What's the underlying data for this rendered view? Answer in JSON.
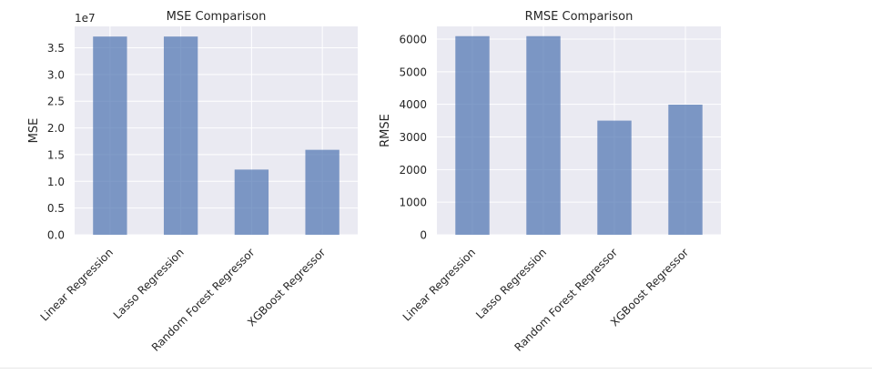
{
  "chart_data": [
    {
      "type": "bar",
      "title": "MSE Comparison",
      "xlabel": "",
      "ylabel": "MSE",
      "offset_text": "1e7",
      "scale": 10000000,
      "categories": [
        "Linear Regression",
        "Lasso Regression",
        "Random Forest Regressor",
        "XGBoost Regressor"
      ],
      "values": [
        37100000,
        37100000,
        12200000,
        15900000
      ],
      "ylim": [
        0,
        39000000
      ],
      "yticks": [
        0,
        5000000,
        10000000,
        15000000,
        20000000,
        25000000,
        30000000,
        35000000
      ],
      "ytick_labels": [
        "0.0",
        "0.5",
        "1.0",
        "1.5",
        "2.0",
        "2.5",
        "3.0",
        "3.5"
      ],
      "grid": true,
      "bar_color": "#4c72b0"
    },
    {
      "type": "bar",
      "title": "RMSE Comparison",
      "xlabel": "",
      "ylabel": "RMSE",
      "categories": [
        "Linear Regression",
        "Lasso Regression",
        "Random Forest Regressor",
        "XGBoost Regressor"
      ],
      "values": [
        6090,
        6090,
        3500,
        3990
      ],
      "ylim": [
        0,
        6390
      ],
      "yticks": [
        0,
        1000,
        2000,
        3000,
        4000,
        5000,
        6000
      ],
      "ytick_labels": [
        "0",
        "1000",
        "2000",
        "3000",
        "4000",
        "5000",
        "6000"
      ],
      "grid": true,
      "bar_color": "#4c72b0"
    }
  ]
}
